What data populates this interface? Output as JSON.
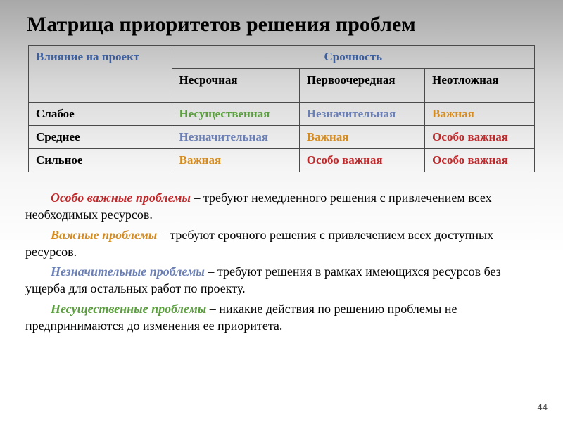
{
  "title": "Матрица приоритетов решения проблем",
  "table": {
    "corner_header": "Влияние на проект",
    "urgency_header": "Срочность",
    "urgency_cols": [
      "Несрочная",
      "Первоочередная",
      "Неотложная"
    ],
    "row_labels": [
      "Слабое",
      "Среднее",
      "Сильное"
    ],
    "cells": [
      [
        {
          "text": "Несущественная",
          "color": "#5a9e3e"
        },
        {
          "text": "Незначительная",
          "color": "#6a7fb5"
        },
        {
          "text": "Важная",
          "color": "#d68b1f"
        }
      ],
      [
        {
          "text": "Незначительная",
          "color": "#6a7fb5"
        },
        {
          "text": "Важная",
          "color": "#d68b1f"
        },
        {
          "text": "Особо важная",
          "color": "#c0292b"
        }
      ],
      [
        {
          "text": "Важная",
          "color": "#d68b1f"
        },
        {
          "text": "Особо важная",
          "color": "#c0292b"
        },
        {
          "text": "Особо важная",
          "color": "#c0292b"
        }
      ]
    ],
    "cell_fontsize": 17,
    "header_color_blue": "#3b5fa0",
    "border_color": "#4a4a4a"
  },
  "notes": [
    {
      "term": "Особо важные проблемы",
      "term_color": "#c0292b",
      "dash": " – ",
      "rest": "требуют немедленного решения с привлечением всех необходимых ресурсов."
    },
    {
      "term": "Важные проблемы",
      "term_color": "#d68b1f",
      "dash": " – ",
      "rest": "требуют срочного решения с привлечением всех доступных ресурсов."
    },
    {
      "term": "Незначительные проблемы",
      "term_color": "#6a7fb5",
      "dash": " – ",
      "rest": "требуют решения в рамках имеющихся ресурсов без ущерба для остальных работ по проекту."
    },
    {
      "term": "Несущественные проблемы",
      "term_color": "#5a9e3e",
      "dash": " – ",
      "rest": "никакие действия по решению проблемы не предпринимаются до изменения ее приоритета."
    }
  ],
  "page_number": "44",
  "colors": {
    "green": "#5a9e3e",
    "blue": "#6a7fb5",
    "orange": "#d68b1f",
    "red": "#c0292b",
    "header_blue": "#3b5fa0",
    "text_black": "#000000"
  },
  "typography": {
    "title_fontsize": 30,
    "table_fontsize": 17,
    "notes_fontsize": 18,
    "font_family": "Times New Roman"
  }
}
